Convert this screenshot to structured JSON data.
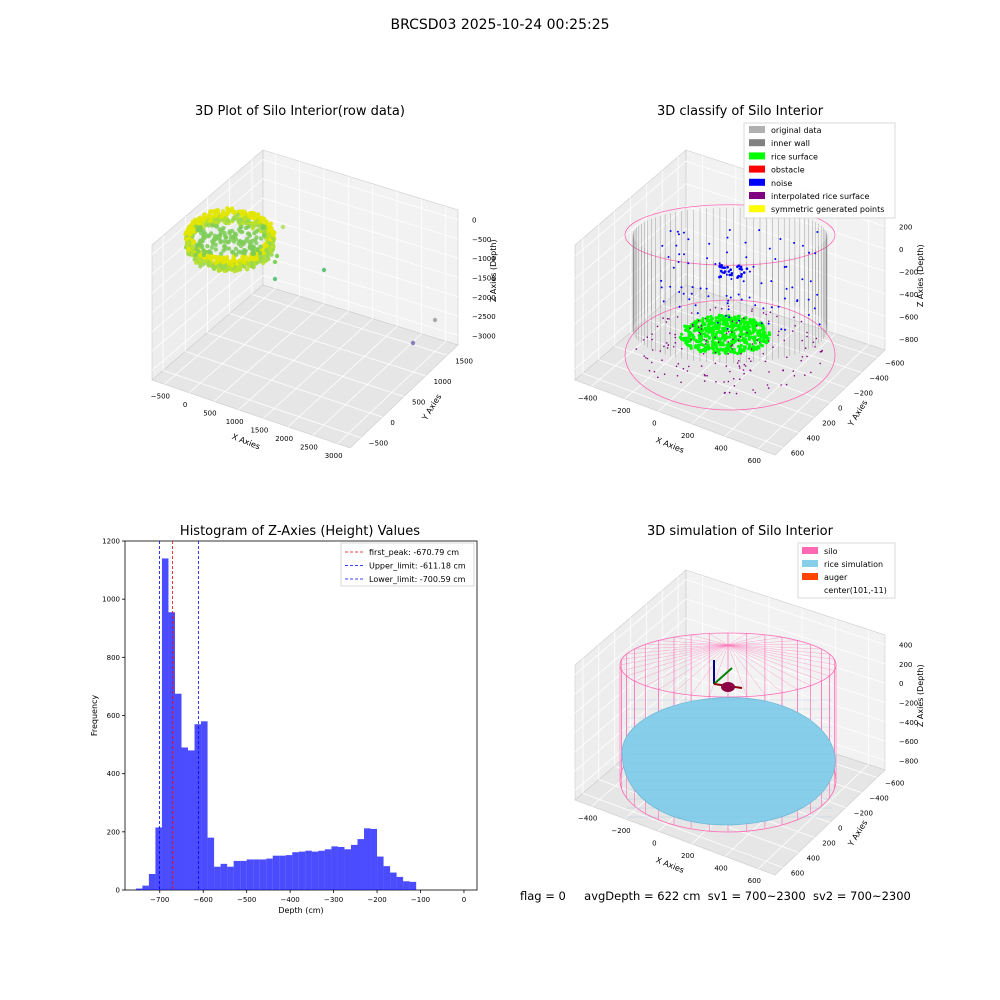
{
  "suptitle": "BRCSD03 2025-10-24 00:25:25",
  "footer": {
    "flag": "flag = 0",
    "avg_depth": "avgDepth = 622 cm",
    "sv1": "sv1 = 700~2300",
    "sv2": "sv2 = 700~2300"
  },
  "colors": {
    "histogram": "#0000ff",
    "first_peak": "#ff0000",
    "limits": "#0000ff",
    "silo": "#ff69b4",
    "rice_simulation": "#87ceeb",
    "auger": "#ff4500",
    "inner_wall": "#808080",
    "rice_surface": "#00ff00",
    "noise": "#0000ff",
    "interpolated": "#800080",
    "symmetric": "#ffff00",
    "original": "#b0b0b0"
  },
  "chart_data": [
    {
      "type": "scatter",
      "title": "3D Plot of Silo Interior(row data)",
      "xlabel": "X Axies",
      "ylabel": "Y Axies",
      "zlabel": "Z Axies (Depth)",
      "x_ticks": [
        "−500",
        "0",
        "500",
        "1000",
        "1500",
        "2000",
        "2500",
        "3000"
      ],
      "y_ticks": [
        "−500",
        "0",
        "500",
        "1000",
        "1500"
      ],
      "z_ticks": [
        "0",
        "−500",
        "−1000",
        "−1500",
        "−2000",
        "−2500",
        "−3000"
      ],
      "grid": true
    },
    {
      "type": "scatter",
      "title": "3D classify of Silo Interior",
      "xlabel": "X Axies",
      "ylabel": "Y Axies",
      "zlabel": "Z Axies (Depth)",
      "x_ticks": [
        "−400",
        "−200",
        "0",
        "200",
        "400",
        "600"
      ],
      "y_ticks": [
        "600",
        "400",
        "200",
        "0",
        "−200",
        "−400",
        "−600"
      ],
      "z_ticks": [
        "200",
        "0",
        "−200",
        "−400",
        "−600",
        "−800"
      ],
      "legend": [
        "original data",
        "inner wall",
        "rice surface",
        "obstacle",
        "noise",
        "interpolated rice surface",
        "symmetric generated points"
      ],
      "legend_colors": [
        "#b0b0b0",
        "#808080",
        "#00ff00",
        "#ff0000",
        "#0000ff",
        "#800080",
        "#ffff00"
      ],
      "legend_position": "top-right",
      "grid": true
    },
    {
      "type": "bar",
      "title": "Histogram of Z-Axies (Height) Values",
      "xlabel": "Depth (cm)",
      "ylabel": "Frequency",
      "xlim": [
        -780,
        30
      ],
      "ylim": [
        0,
        1200
      ],
      "x_ticks": [
        -700,
        -600,
        -500,
        -400,
        -300,
        -200,
        -100,
        0
      ],
      "x_tick_labels": [
        "−700",
        "−600",
        "−500",
        "−400",
        "−300",
        "−200",
        "−100",
        "0"
      ],
      "y_ticks": [
        0,
        200,
        400,
        600,
        800,
        1000,
        1200
      ],
      "bin_start": -755,
      "bin_width": 15,
      "values": [
        5,
        15,
        55,
        215,
        1140,
        955,
        675,
        490,
        480,
        570,
        580,
        180,
        80,
        90,
        80,
        100,
        100,
        105,
        105,
        105,
        108,
        118,
        118,
        120,
        130,
        132,
        135,
        132,
        135,
        140,
        150,
        148,
        140,
        155,
        175,
        212,
        210,
        115,
        82,
        60,
        45,
        30,
        28
      ],
      "lines": [
        {
          "name": "first_peak: -670.79 cm",
          "x": -670.79,
          "color": "#ff0000"
        },
        {
          "name": "Upper_limit: -611.18 cm",
          "x": -611.18,
          "color": "#0000ff"
        },
        {
          "name": "Lower_limit: -700.59 cm",
          "x": -700.59,
          "color": "#0000ff"
        }
      ],
      "legend_position": "top-right"
    },
    {
      "type": "scatter",
      "title": "3D simulation of Silo Interior",
      "xlabel": "X Axies",
      "ylabel": "Y Axies",
      "zlabel": "Z Axies (Depth)",
      "x_ticks": [
        "−400",
        "−200",
        "0",
        "200",
        "400",
        "600"
      ],
      "y_ticks": [
        "600",
        "400",
        "200",
        "0",
        "−200",
        "−400",
        "−600"
      ],
      "z_ticks": [
        "400",
        "200",
        "0",
        "−200",
        "−400",
        "−600",
        "−800"
      ],
      "legend": [
        "silo",
        "rice simulation",
        "auger",
        "center(101,-11)"
      ],
      "legend_colors": [
        "#ff69b4",
        "#87ceeb",
        "#ff4500",
        ""
      ],
      "legend_position": "top-right",
      "grid": true
    }
  ]
}
